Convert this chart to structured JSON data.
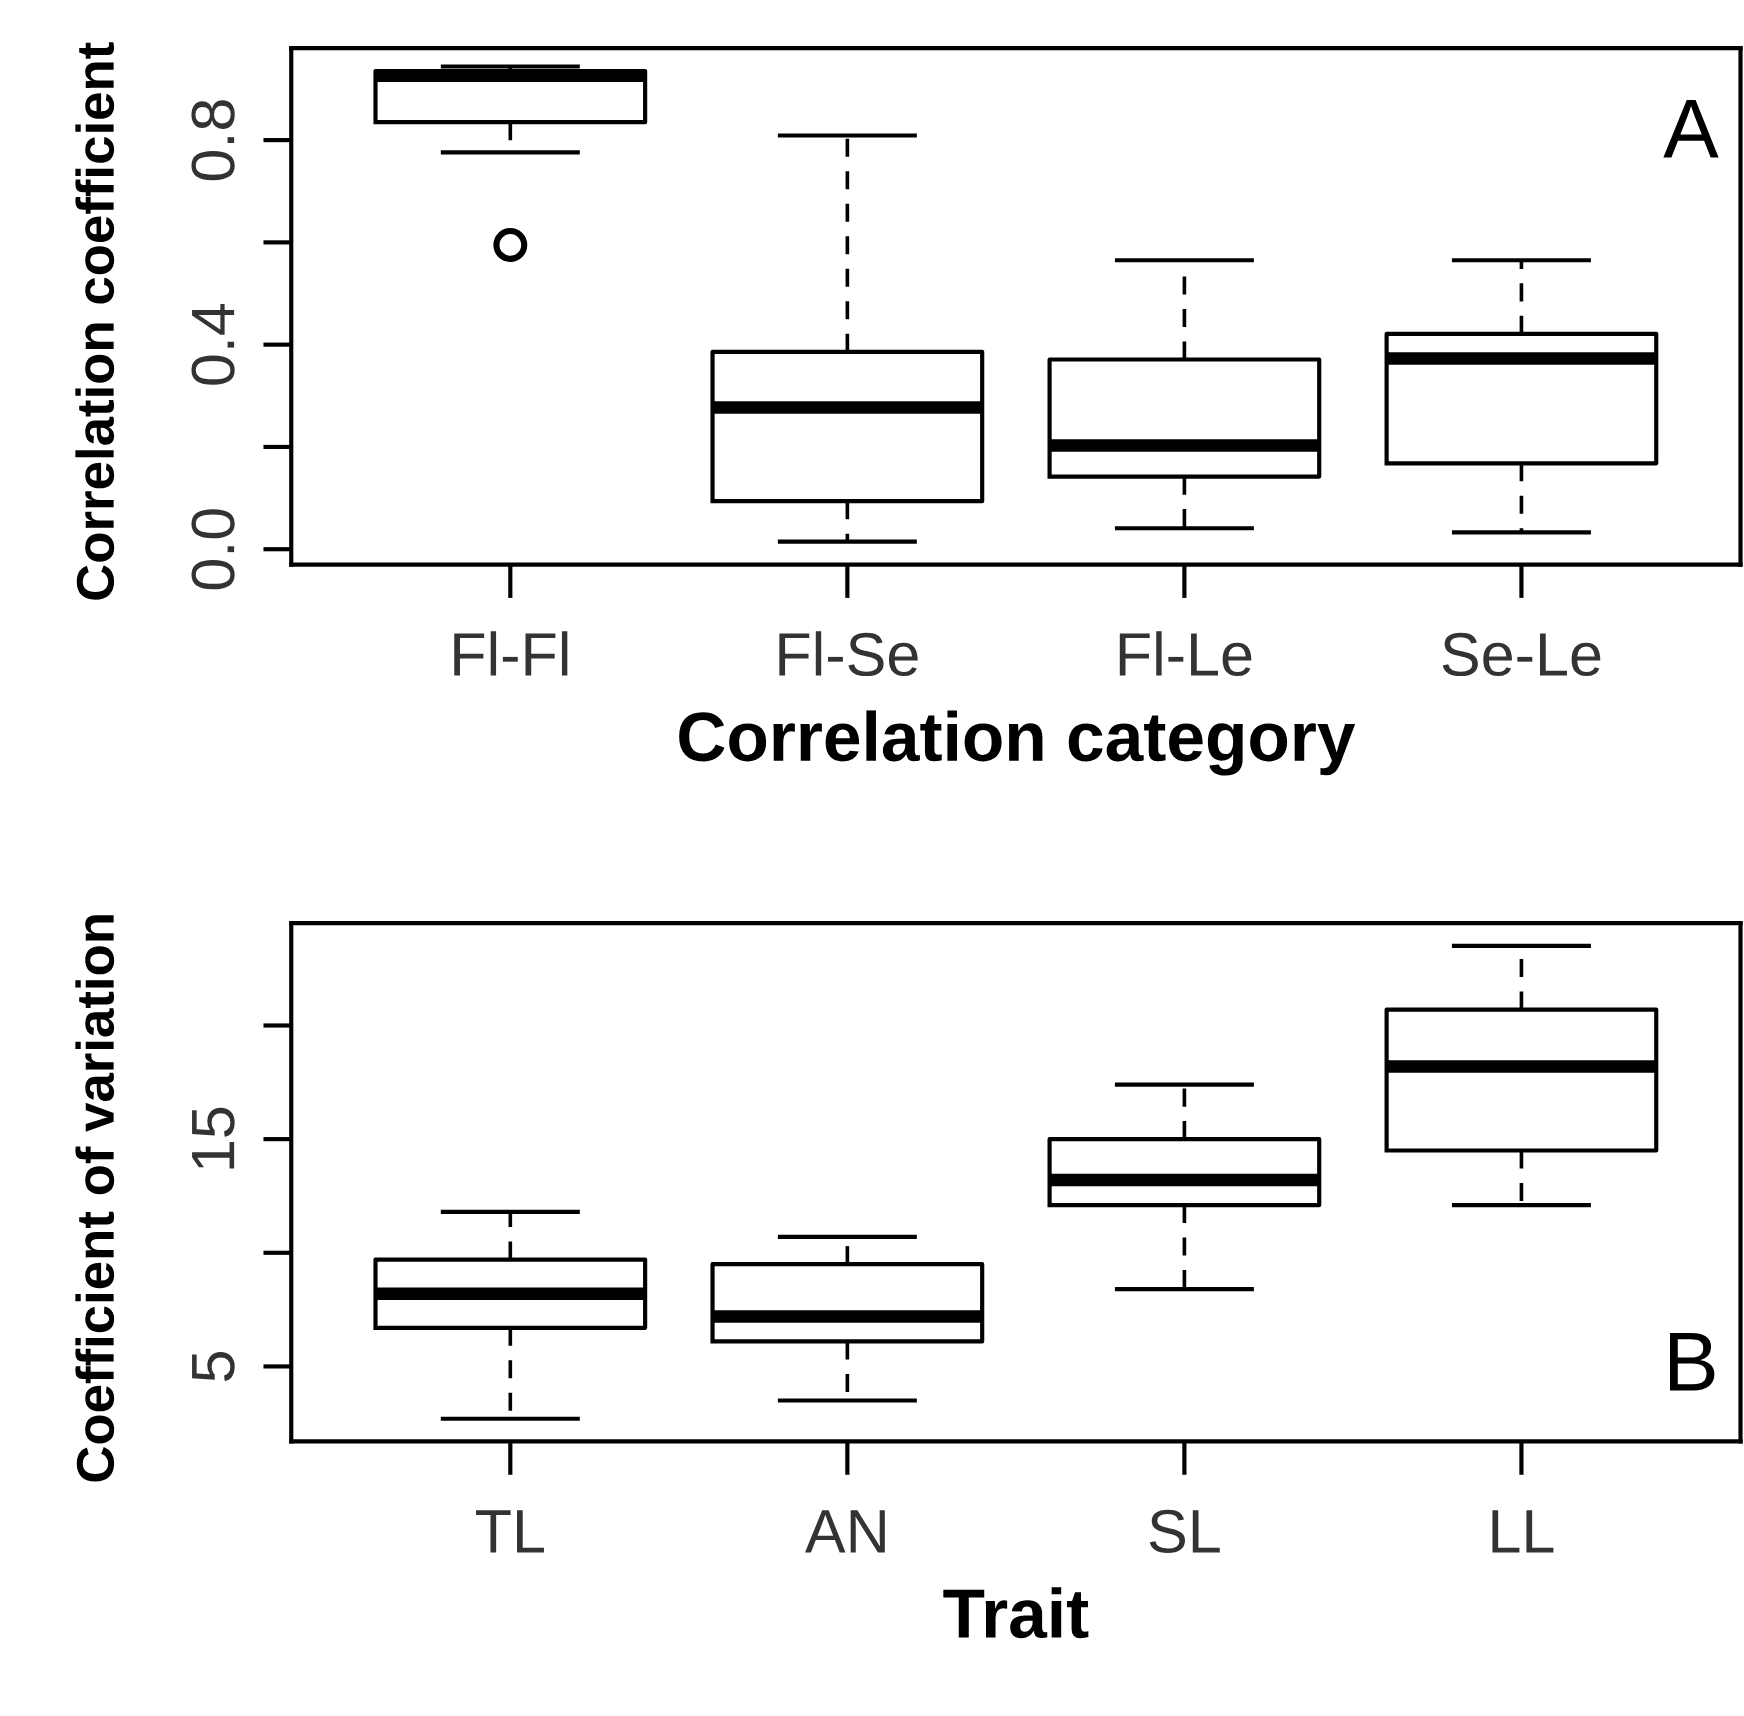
{
  "chart_data": [
    {
      "type": "box",
      "ylabel": "Correlation coefficient",
      "xlabel": "Correlation category",
      "categories": [
        "Fl-Fl",
        "Fl-Se",
        "Fl-Le",
        "Se-Le"
      ],
      "boxes": [
        {
          "low": 0.776,
          "q1": 0.835,
          "median": 0.926,
          "q3": 0.935,
          "high": 0.944,
          "outliers": [
            0.595
          ]
        },
        {
          "low": 0.015,
          "q1": 0.094,
          "median": 0.277,
          "q3": 0.386,
          "high": 0.809
        },
        {
          "low": 0.041,
          "q1": 0.142,
          "median": 0.203,
          "q3": 0.371,
          "high": 0.565
        },
        {
          "low": 0.033,
          "q1": 0.168,
          "median": 0.373,
          "q3": 0.421,
          "high": 0.565
        }
      ],
      "ylim": [
        -0.03,
        0.98
      ],
      "yticks": [
        {
          "value": 0,
          "label": "0.0"
        },
        {
          "value": 0.2,
          "label": null
        },
        {
          "value": 0.4,
          "label": "0.4"
        },
        {
          "value": 0.6,
          "label": null
        },
        {
          "value": 0.8,
          "label": "0.8"
        }
      ],
      "annotations": [
        "A"
      ],
      "grid": false
    },
    {
      "type": "box",
      "ylabel": "Coefficient of variation",
      "xlabel": "Trait",
      "categories": [
        "TL",
        "AN",
        "SL",
        "LL"
      ],
      "boxes": [
        {
          "low": 2.7,
          "q1": 6.7,
          "median": 8.2,
          "q3": 9.7,
          "high": 11.8
        },
        {
          "low": 3.5,
          "q1": 6.1,
          "median": 7.2,
          "q3": 9.5,
          "high": 10.7
        },
        {
          "low": 8.4,
          "q1": 12.1,
          "median": 13.2,
          "q3": 15.0,
          "high": 17.4
        },
        {
          "low": 12.1,
          "q1": 14.5,
          "median": 18.2,
          "q3": 20.7,
          "high": 23.5
        }
      ],
      "ylim": [
        1.7,
        24.5
      ],
      "yticks": [
        {
          "value": 5,
          "label": "5"
        },
        {
          "value": 10,
          "label": null
        },
        {
          "value": 15,
          "label": "15"
        },
        {
          "value": 20,
          "label": null
        }
      ],
      "annotations": [
        "B"
      ],
      "grid": false
    }
  ]
}
